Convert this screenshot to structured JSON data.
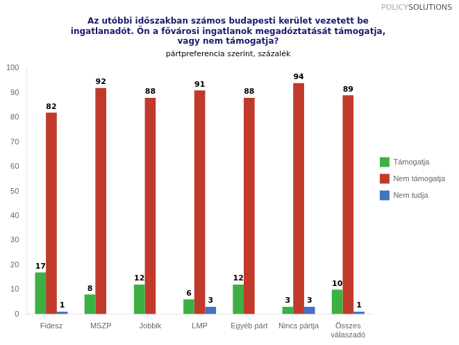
{
  "chart_data": {
    "type": "bar",
    "title": "Az utóbbi időszakban számos budapesti kerület vezetett be\ningatlanadót. Ön a fővárosi ingatlanok megadóztatását támogatja,\nvagy nem támogatja?",
    "subtitle": "pártpreferencia szerint, százalék",
    "annotations": [
      {
        "text": "POLICY",
        "color": "#aaaaaa"
      },
      {
        "text": "SOLUTIONS",
        "color": "#555555"
      }
    ],
    "categories": [
      "Fidesz",
      "MSZP",
      "Jobbik",
      "LMP",
      "Egyéb párt",
      "Nincs pártja",
      "Összes\nválaszadó"
    ],
    "series": [
      {
        "name": "Támogatja",
        "color": "#3cb043",
        "values": [
          17,
          8,
          12,
          6,
          12,
          3,
          10
        ],
        "value_labels": [
          "17",
          "8",
          "12",
          "6",
          "12",
          "3",
          "10"
        ]
      },
      {
        "name": "Nem támogatja",
        "color": "#c0392b",
        "values": [
          82,
          92,
          88,
          91,
          88,
          94,
          89
        ],
        "value_labels": [
          "82",
          "92",
          "88",
          "91",
          "88",
          "94",
          "89"
        ]
      },
      {
        "name": "Nem tudja",
        "color": "#4472c4",
        "values": [
          1,
          0,
          0,
          3,
          0,
          3,
          1
        ],
        "value_labels": [
          "1",
          null,
          null,
          "3",
          null,
          "3",
          "1"
        ]
      }
    ],
    "ylim": [
      0,
      100
    ],
    "yticks": [
      0,
      10,
      20,
      30,
      40,
      50,
      60,
      70,
      80,
      90,
      100
    ],
    "grid": false,
    "legend": "right",
    "data_labels": true
  }
}
